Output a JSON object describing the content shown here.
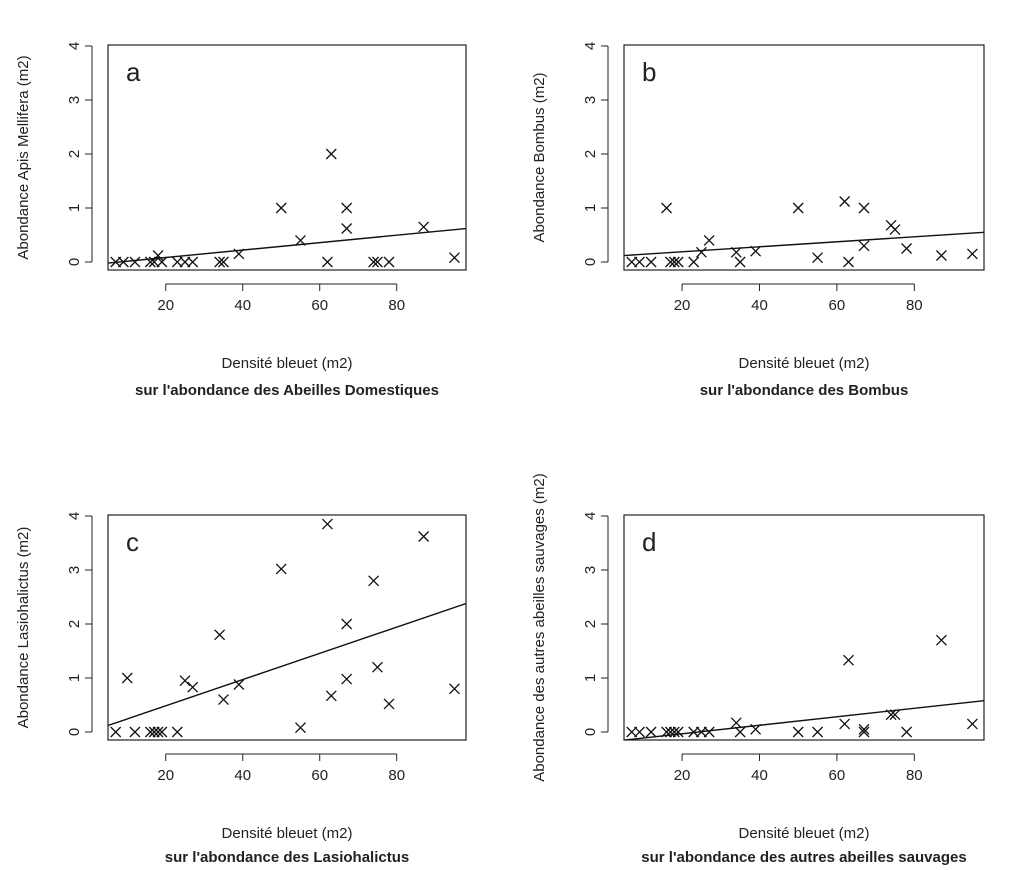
{
  "chart_data": [
    {
      "type": "scatter",
      "panel": "a",
      "xlabel": "Densité bleuet (m2)",
      "ylabel": "Abondance Apis Mellifera (m2)",
      "caption": "sur l'abondance des Abeilles Domestiques",
      "xlim": [
        5,
        98
      ],
      "ylim": [
        0,
        4
      ],
      "x_ticks": [
        20,
        40,
        60,
        80
      ],
      "y_ticks": [
        0,
        1,
        2,
        3,
        4
      ],
      "points": [
        [
          7,
          0
        ],
        [
          9,
          0
        ],
        [
          12,
          0
        ],
        [
          16,
          0
        ],
        [
          17,
          0
        ],
        [
          18,
          0.12
        ],
        [
          19,
          0
        ],
        [
          23,
          0
        ],
        [
          25,
          0
        ],
        [
          27,
          0
        ],
        [
          34,
          0
        ],
        [
          35,
          0
        ],
        [
          39,
          0.15
        ],
        [
          50,
          1.0
        ],
        [
          55,
          0.4
        ],
        [
          62,
          0
        ],
        [
          63,
          2.0
        ],
        [
          67,
          1.0
        ],
        [
          67,
          0.62
        ],
        [
          74,
          0
        ],
        [
          75,
          0
        ],
        [
          78,
          0
        ],
        [
          87,
          0.65
        ],
        [
          95,
          0.08
        ]
      ],
      "regression": {
        "x": [
          5,
          98
        ],
        "y": [
          -0.02,
          0.62
        ]
      }
    },
    {
      "type": "scatter",
      "panel": "b",
      "xlabel": "Densité bleuet (m2)",
      "ylabel": "Abondance Bombus (m2)",
      "caption": "sur l'abondance des Bombus",
      "xlim": [
        5,
        98
      ],
      "ylim": [
        0,
        4
      ],
      "x_ticks": [
        20,
        40,
        60,
        80
      ],
      "y_ticks": [
        0,
        1,
        2,
        3,
        4
      ],
      "points": [
        [
          7,
          0
        ],
        [
          9,
          0
        ],
        [
          12,
          0
        ],
        [
          16,
          1.0
        ],
        [
          17,
          0
        ],
        [
          18,
          0
        ],
        [
          19,
          0
        ],
        [
          23,
          0
        ],
        [
          25,
          0.18
        ],
        [
          27,
          0.4
        ],
        [
          34,
          0.18
        ],
        [
          35,
          0
        ],
        [
          39,
          0.2
        ],
        [
          50,
          1.0
        ],
        [
          55,
          0.08
        ],
        [
          62,
          1.12
        ],
        [
          63,
          0
        ],
        [
          67,
          1.0
        ],
        [
          67,
          0.3
        ],
        [
          74,
          0.68
        ],
        [
          75,
          0.6
        ],
        [
          78,
          0.25
        ],
        [
          87,
          0.12
        ],
        [
          95,
          0.15
        ]
      ],
      "regression": {
        "x": [
          5,
          98
        ],
        "y": [
          0.12,
          0.55
        ]
      }
    },
    {
      "type": "scatter",
      "panel": "c",
      "xlabel": "Densité bleuet (m2)",
      "ylabel": "Abondance Lasiohalictus (m2)",
      "caption": "sur l'abondance des Lasiohalictus",
      "xlim": [
        5,
        98
      ],
      "ylim": [
        0,
        4
      ],
      "x_ticks": [
        20,
        40,
        60,
        80
      ],
      "y_ticks": [
        0,
        1,
        2,
        3,
        4
      ],
      "points": [
        [
          7,
          0
        ],
        [
          10,
          1.0
        ],
        [
          12,
          0
        ],
        [
          16,
          0
        ],
        [
          17,
          0
        ],
        [
          18,
          0
        ],
        [
          19,
          0
        ],
        [
          23,
          0
        ],
        [
          25,
          0.95
        ],
        [
          27,
          0.83
        ],
        [
          34,
          1.8
        ],
        [
          35,
          0.6
        ],
        [
          39,
          0.88
        ],
        [
          50,
          3.02
        ],
        [
          55,
          0.08
        ],
        [
          62,
          3.85
        ],
        [
          63,
          0.67
        ],
        [
          67,
          2.0
        ],
        [
          67,
          0.98
        ],
        [
          74,
          2.8
        ],
        [
          75,
          1.2
        ],
        [
          78,
          0.52
        ],
        [
          87,
          3.62
        ],
        [
          95,
          0.8
        ]
      ],
      "regression": {
        "x": [
          5,
          98
        ],
        "y": [
          0.12,
          2.38
        ]
      }
    },
    {
      "type": "scatter",
      "panel": "d",
      "xlabel": "Densité bleuet (m2)",
      "ylabel": "Abondance des autres abeilles sauvages (m2)",
      "caption": "sur l'abondance des autres abeilles sauvages",
      "xlim": [
        5,
        98
      ],
      "ylim": [
        0,
        4
      ],
      "x_ticks": [
        20,
        40,
        60,
        80
      ],
      "y_ticks": [
        0,
        1,
        2,
        3,
        4
      ],
      "points": [
        [
          7,
          0
        ],
        [
          9,
          0
        ],
        [
          12,
          0
        ],
        [
          16,
          0
        ],
        [
          17,
          0
        ],
        [
          18,
          0
        ],
        [
          19,
          0
        ],
        [
          23,
          0
        ],
        [
          25,
          0
        ],
        [
          27,
          0
        ],
        [
          34,
          0.17
        ],
        [
          35,
          0
        ],
        [
          39,
          0.05
        ],
        [
          50,
          0
        ],
        [
          55,
          0
        ],
        [
          62,
          0.15
        ],
        [
          63,
          1.33
        ],
        [
          67,
          0.05
        ],
        [
          67,
          0
        ],
        [
          74,
          0.32
        ],
        [
          75,
          0.32
        ],
        [
          78,
          0
        ],
        [
          87,
          1.7
        ],
        [
          95,
          0.15
        ]
      ],
      "regression": {
        "x": [
          5,
          98
        ],
        "y": [
          -0.15,
          0.58
        ]
      }
    }
  ]
}
